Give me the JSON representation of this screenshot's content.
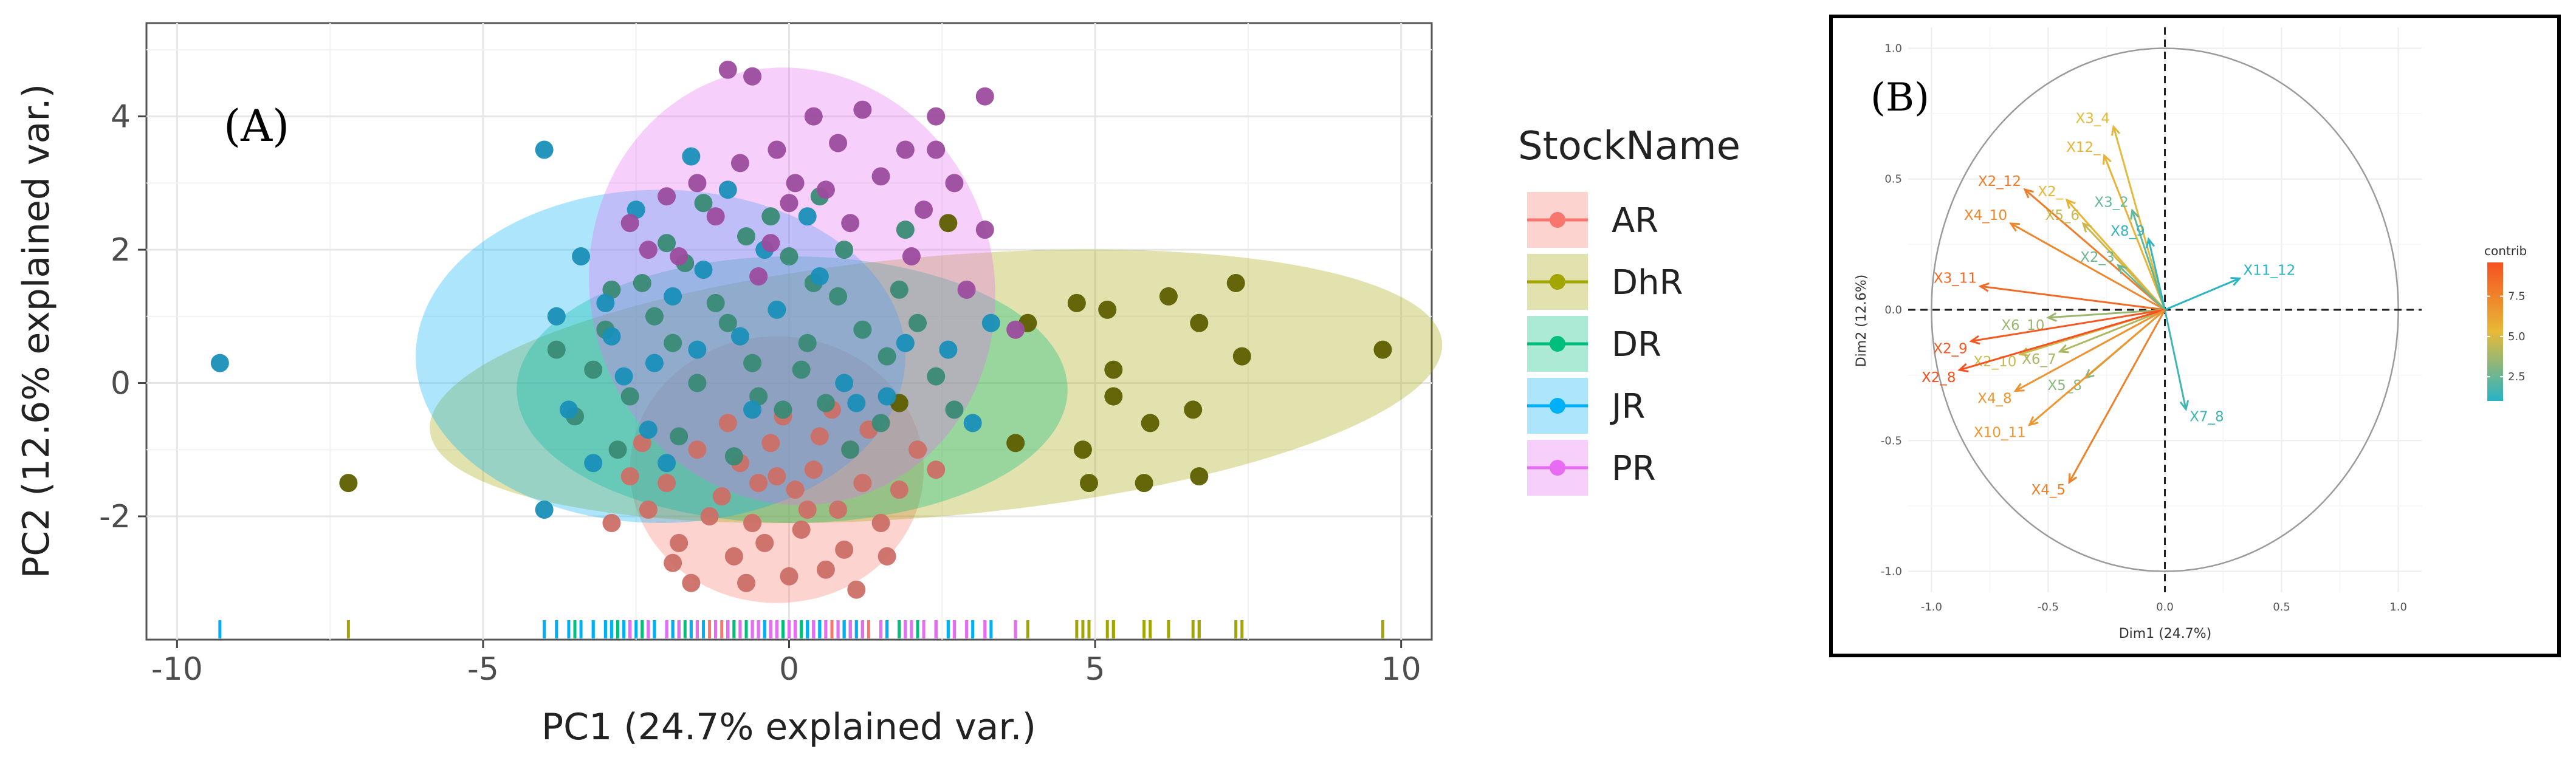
{
  "chart_data": [
    {
      "type": "scatter",
      "panel_label": "(A)",
      "xlabel": "PC1 (24.7% explained var.)",
      "ylabel": "PC2 (12.6% explained var.)",
      "xlim": [
        -10.5,
        10.5
      ],
      "ylim": [
        -3.85,
        5.4
      ],
      "xticks": [
        -10,
        -5,
        0,
        5,
        10
      ],
      "yticks": [
        -2,
        0,
        2,
        4
      ],
      "legend_title": "StockName",
      "legend_position": "right",
      "grid": true,
      "rug": true,
      "series": [
        {
          "name": "AR",
          "color": "#F8766D",
          "point_color": "#CC6F66",
          "ellipse": {
            "cx": -0.2,
            "cy": -1.3,
            "rx": 2.4,
            "ry": 2.0,
            "angle": 0
          },
          "points": [
            [
              -0.8,
              -1.2
            ],
            [
              -0.5,
              -1.5
            ],
            [
              -0.2,
              -1.4
            ],
            [
              0.1,
              -1.6
            ],
            [
              0.4,
              -1.3
            ],
            [
              -1.1,
              -1.7
            ],
            [
              -0.6,
              -2.1
            ],
            [
              0.2,
              -2.2
            ],
            [
              0.8,
              -1.9
            ],
            [
              1.2,
              -1.5
            ],
            [
              -1.5,
              -1.0
            ],
            [
              -2.0,
              -1.5
            ],
            [
              -2.3,
              -1.9
            ],
            [
              -1.8,
              -2.4
            ],
            [
              -0.9,
              -2.6
            ],
            [
              0.0,
              -2.9
            ],
            [
              0.9,
              -2.5
            ],
            [
              1.5,
              -2.1
            ],
            [
              1.8,
              -1.6
            ],
            [
              2.1,
              -1.0
            ],
            [
              -0.3,
              -0.9
            ],
            [
              0.5,
              -0.8
            ],
            [
              1.0,
              -1.0
            ],
            [
              -1.3,
              -2.0
            ],
            [
              -2.6,
              -1.4
            ],
            [
              -0.7,
              -3.0
            ],
            [
              0.3,
              -1.9
            ],
            [
              1.6,
              -2.6
            ],
            [
              -1.9,
              -2.7
            ],
            [
              -0.1,
              -0.5
            ],
            [
              0.7,
              -0.4
            ],
            [
              1.3,
              -0.7
            ],
            [
              -2.4,
              -0.9
            ],
            [
              -1.0,
              -0.6
            ],
            [
              2.4,
              -1.3
            ],
            [
              -0.4,
              -2.4
            ],
            [
              0.6,
              -2.8
            ],
            [
              1.1,
              -3.1
            ],
            [
              -1.6,
              -3.0
            ],
            [
              -2.9,
              -2.1
            ]
          ]
        },
        {
          "name": "DhR",
          "color": "#A3A500",
          "point_color": "#5E5E00",
          "ellipse": {
            "cx": 2.4,
            "cy": -0.05,
            "rx": 8.3,
            "ry": 1.95,
            "angle": -5
          },
          "points": [
            [
              9.7,
              0.5
            ],
            [
              7.3,
              1.5
            ],
            [
              7.4,
              0.4
            ],
            [
              6.7,
              0.9
            ],
            [
              6.2,
              1.3
            ],
            [
              5.9,
              -0.6
            ],
            [
              6.7,
              -1.4
            ],
            [
              5.8,
              -1.5
            ],
            [
              5.3,
              0.2
            ],
            [
              5.2,
              1.1
            ],
            [
              4.8,
              -1.0
            ],
            [
              5.3,
              -0.2
            ],
            [
              4.7,
              1.2
            ],
            [
              4.9,
              -1.5
            ],
            [
              6.6,
              -0.4
            ],
            [
              -7.2,
              -1.5
            ],
            [
              2.6,
              2.4
            ],
            [
              3.7,
              -0.9
            ],
            [
              3.9,
              0.9
            ],
            [
              1.8,
              -0.3
            ]
          ]
        },
        {
          "name": "DR",
          "color": "#00BF7D",
          "point_color": "#3A8A75",
          "ellipse": {
            "cx": 0.05,
            "cy": -0.1,
            "rx": 4.5,
            "ry": 2.0,
            "angle": 0
          },
          "points": [
            [
              -3.5,
              -0.5
            ],
            [
              -3.0,
              0.8
            ],
            [
              -2.4,
              1.5
            ],
            [
              -1.8,
              -0.8
            ],
            [
              -1.2,
              1.2
            ],
            [
              -0.6,
              0.3
            ],
            [
              0.0,
              1.9
            ],
            [
              0.6,
              -0.3
            ],
            [
              1.2,
              0.8
            ],
            [
              1.8,
              1.4
            ],
            [
              2.4,
              0.1
            ],
            [
              -2.8,
              -1.0
            ],
            [
              -2.0,
              2.1
            ],
            [
              -1.5,
              0.0
            ],
            [
              -0.9,
              -1.1
            ],
            [
              -0.3,
              2.5
            ],
            [
              0.3,
              0.6
            ],
            [
              0.9,
              2.0
            ],
            [
              1.5,
              -0.6
            ],
            [
              2.1,
              0.9
            ],
            [
              -3.2,
              0.2
            ],
            [
              -2.6,
              -0.2
            ],
            [
              -1.9,
              0.6
            ],
            [
              -1.0,
              0.9
            ],
            [
              -0.1,
              -0.4
            ],
            [
              0.8,
              1.3
            ],
            [
              1.6,
              0.4
            ],
            [
              2.7,
              -0.4
            ],
            [
              -2.2,
              1.0
            ],
            [
              0.4,
              1.5
            ],
            [
              -1.4,
              2.7
            ],
            [
              -0.7,
              2.2
            ],
            [
              1.0,
              -1.0
            ],
            [
              -3.8,
              0.5
            ],
            [
              -0.5,
              -0.2
            ],
            [
              0.2,
              0.2
            ],
            [
              -2.9,
              1.4
            ],
            [
              1.9,
              2.3
            ],
            [
              -1.7,
              1.8
            ],
            [
              0.5,
              2.8
            ]
          ]
        },
        {
          "name": "JR",
          "color": "#00B0F6",
          "point_color": "#1A8FB8",
          "ellipse": {
            "cx": -2.1,
            "cy": 0.4,
            "rx": 4.0,
            "ry": 2.5,
            "angle": 0
          },
          "points": [
            [
              -9.3,
              0.3
            ],
            [
              -4.0,
              3.5
            ],
            [
              -4.0,
              -1.9
            ],
            [
              -3.4,
              1.9
            ],
            [
              -3.0,
              1.2
            ],
            [
              -2.7,
              0.1
            ],
            [
              -2.3,
              -0.7
            ],
            [
              -1.9,
              1.3
            ],
            [
              -1.5,
              0.5
            ],
            [
              -1.0,
              2.9
            ],
            [
              -0.6,
              -0.4
            ],
            [
              -0.2,
              1.1
            ],
            [
              0.3,
              2.5
            ],
            [
              0.9,
              0.0
            ],
            [
              1.6,
              -0.2
            ],
            [
              2.6,
              0.5
            ],
            [
              3.3,
              0.9
            ],
            [
              3.0,
              -0.6
            ],
            [
              -3.6,
              -0.4
            ],
            [
              -3.2,
              -1.2
            ],
            [
              -2.5,
              2.6
            ],
            [
              -2.0,
              -1.2
            ],
            [
              -1.4,
              1.7
            ],
            [
              -0.8,
              0.7
            ],
            [
              -0.4,
              2.0
            ],
            [
              0.5,
              1.6
            ],
            [
              1.1,
              -0.3
            ],
            [
              -2.9,
              0.7
            ],
            [
              -1.6,
              3.4
            ],
            [
              1.9,
              0.6
            ],
            [
              -3.8,
              1.0
            ],
            [
              -2.2,
              0.3
            ]
          ]
        },
        {
          "name": "PR",
          "color": "#E76BF3",
          "point_color": "#9C4C9E",
          "ellipse": {
            "cx": 0.05,
            "cy": 1.45,
            "rx": 3.3,
            "ry": 3.3,
            "angle": -15
          },
          "points": [
            [
              -1.0,
              4.7
            ],
            [
              -0.6,
              4.6
            ],
            [
              0.4,
              4.0
            ],
            [
              1.2,
              4.1
            ],
            [
              2.4,
              4.0
            ],
            [
              3.2,
              4.3
            ],
            [
              1.9,
              3.5
            ],
            [
              2.4,
              3.5
            ],
            [
              2.7,
              3.0
            ],
            [
              3.2,
              2.3
            ],
            [
              -0.2,
              3.5
            ],
            [
              0.8,
              3.6
            ],
            [
              0.1,
              3.0
            ],
            [
              -0.8,
              3.3
            ],
            [
              -1.5,
              3.0
            ],
            [
              -1.2,
              2.5
            ],
            [
              -2.0,
              2.8
            ],
            [
              -0.3,
              2.1
            ],
            [
              0.6,
              2.9
            ],
            [
              1.5,
              3.1
            ],
            [
              2.2,
              2.6
            ],
            [
              -2.6,
              2.4
            ],
            [
              -0.5,
              1.6
            ],
            [
              1.0,
              2.4
            ],
            [
              3.7,
              0.8
            ],
            [
              2.9,
              1.4
            ],
            [
              -1.8,
              1.9
            ],
            [
              0.0,
              2.7
            ],
            [
              2.0,
              1.9
            ],
            [
              -2.3,
              2.0
            ]
          ]
        }
      ]
    },
    {
      "type": "biplot",
      "panel_label": "(B)",
      "xlabel": "Dim1 (24.7%)",
      "ylabel": "Dim2 (12.6%)",
      "xlim": [
        -1.1,
        1.1
      ],
      "ylim": [
        -1.08,
        1.08
      ],
      "xticks": [
        -1.0,
        -0.5,
        0.0,
        0.5,
        1.0
      ],
      "xtick_labels": [
        "-1.0",
        "-0.5",
        "0.0",
        "0.5",
        "1.0"
      ],
      "yticks": [
        -1.0,
        -0.5,
        0.0,
        0.5,
        1.0
      ],
      "ytick_labels": [
        "-1.0",
        "-0.5",
        "0.0",
        "0.5",
        "1.0"
      ],
      "legend_title": "contrib",
      "legend_position": "right",
      "colorbar": {
        "range": [
          1.0,
          9.6
        ],
        "ticks": [
          2.5,
          5.0,
          7.5
        ],
        "tick_labels": [
          "2.5",
          "5.0",
          "7.5"
        ]
      },
      "variables": [
        {
          "name": "X3_4",
          "x": -0.22,
          "y": 0.7,
          "contrib": 5.2
        },
        {
          "name": "X12_",
          "x": -0.26,
          "y": 0.59,
          "contrib": 5.6
        },
        {
          "name": "X2_12",
          "x": -0.6,
          "y": 0.46,
          "contrib": 7.8
        },
        {
          "name": "X2_",
          "x": -0.42,
          "y": 0.42,
          "contrib": 5.5
        },
        {
          "name": "X3_2",
          "x": -0.14,
          "y": 0.38,
          "contrib": 2.4
        },
        {
          "name": "X4_10",
          "x": -0.66,
          "y": 0.33,
          "contrib": 7.4
        },
        {
          "name": "X5_6",
          "x": -0.35,
          "y": 0.33,
          "contrib": 4.6
        },
        {
          "name": "X8_9",
          "x": -0.07,
          "y": 0.27,
          "contrib": 1.3
        },
        {
          "name": "X2_3",
          "x": -0.2,
          "y": 0.17,
          "contrib": 2.6
        },
        {
          "name": "X11_12",
          "x": 0.32,
          "y": 0.12,
          "contrib": 1.1
        },
        {
          "name": "X3_11",
          "x": -0.79,
          "y": 0.09,
          "contrib": 8.6
        },
        {
          "name": "X6_10",
          "x": -0.5,
          "y": -0.03,
          "contrib": 3.6
        },
        {
          "name": "X2_9",
          "x": -0.83,
          "y": -0.12,
          "contrib": 9.3
        },
        {
          "name": "X6_7",
          "x": -0.45,
          "y": -0.16,
          "contrib": 4.0
        },
        {
          "name": "X2_10",
          "x": -0.62,
          "y": -0.17,
          "contrib": 4.6
        },
        {
          "name": "X2_8",
          "x": -0.88,
          "y": -0.23,
          "contrib": 9.6
        },
        {
          "name": "X5_8",
          "x": -0.34,
          "y": -0.26,
          "contrib": 3.2
        },
        {
          "name": "X4_8",
          "x": -0.64,
          "y": -0.31,
          "contrib": 6.9
        },
        {
          "name": "X7_8",
          "x": 0.09,
          "y": -0.38,
          "contrib": 1.6
        },
        {
          "name": "X10_11",
          "x": -0.58,
          "y": -0.44,
          "contrib": 6.7
        },
        {
          "name": "X4_5",
          "x": -0.41,
          "y": -0.66,
          "contrib": 7.6
        }
      ]
    }
  ]
}
